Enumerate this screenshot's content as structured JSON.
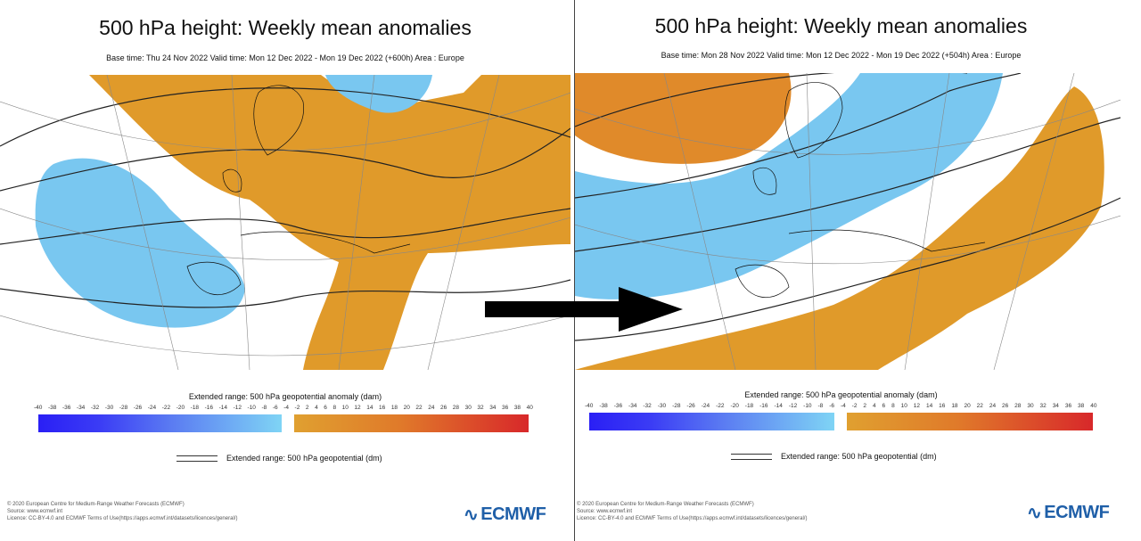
{
  "ticks": [
    "-40",
    "-38",
    "-36",
    "-34",
    "-32",
    "-30",
    "-28",
    "-26",
    "-24",
    "-22",
    "-20",
    "-18",
    "-16",
    "-14",
    "-12",
    "-10",
    "-8",
    "-6",
    "-4",
    "-2",
    "2",
    "4",
    "6",
    "8",
    "10",
    "12",
    "14",
    "16",
    "18",
    "20",
    "22",
    "24",
    "26",
    "28",
    "30",
    "32",
    "34",
    "36",
    "38",
    "40"
  ],
  "colors": {
    "negative_start": "#2a1ff5",
    "negative_end": "#7fd4f5",
    "positive_start": "#e0a030",
    "positive_end": "#d8282a",
    "map_blue": "#79c7f0",
    "map_orange": "#e09a2a",
    "logo": "#1f5fa8"
  },
  "panels": [
    {
      "title": "500 hPa height: Weekly mean anomalies",
      "subtitle": "Base time: Thu 24 Nov 2022 Valid time: Mon 12 Dec 2022 - Mon 19 Dec 2022 (+600h) Area : Europe",
      "colorbar_label": "Extended range: 500 hPa geopotential anomaly (dam)",
      "contour_legend": "Extended range: 500 hPa geopotential (dm)",
      "footer": [
        "© 2020 European Centre for Medium-Range Weather Forecasts (ECMWF)",
        "Source: www.ecmwf.int",
        "Licence: CC-BY-4.0 and ECMWF Terms of Use(https://apps.ecmwf.int/datasets/licences/general/)"
      ],
      "logo": "ECMWF"
    },
    {
      "title": "500 hPa height: Weekly mean anomalies",
      "subtitle": "Base time: Mon 28 Nov 2022 Valid time: Mon 12 Dec 2022 - Mon 19 Dec 2022 (+504h) Area : Europe",
      "colorbar_label": "Extended range: 500 hPa geopotential anomaly (dam)",
      "contour_legend": "Extended range: 500 hPa geopotential (dm)",
      "footer": [
        "© 2020 European Centre for Medium-Range Weather Forecasts (ECMWF)",
        "Source: www.ecmwf.int",
        "Licence: CC-BY-4.0 and ECMWF Terms of Use(https://apps.ecmwf.int/datasets/licences/general/)"
      ],
      "logo": "ECMWF"
    }
  ],
  "arrow_icon": "right-arrow-icon"
}
